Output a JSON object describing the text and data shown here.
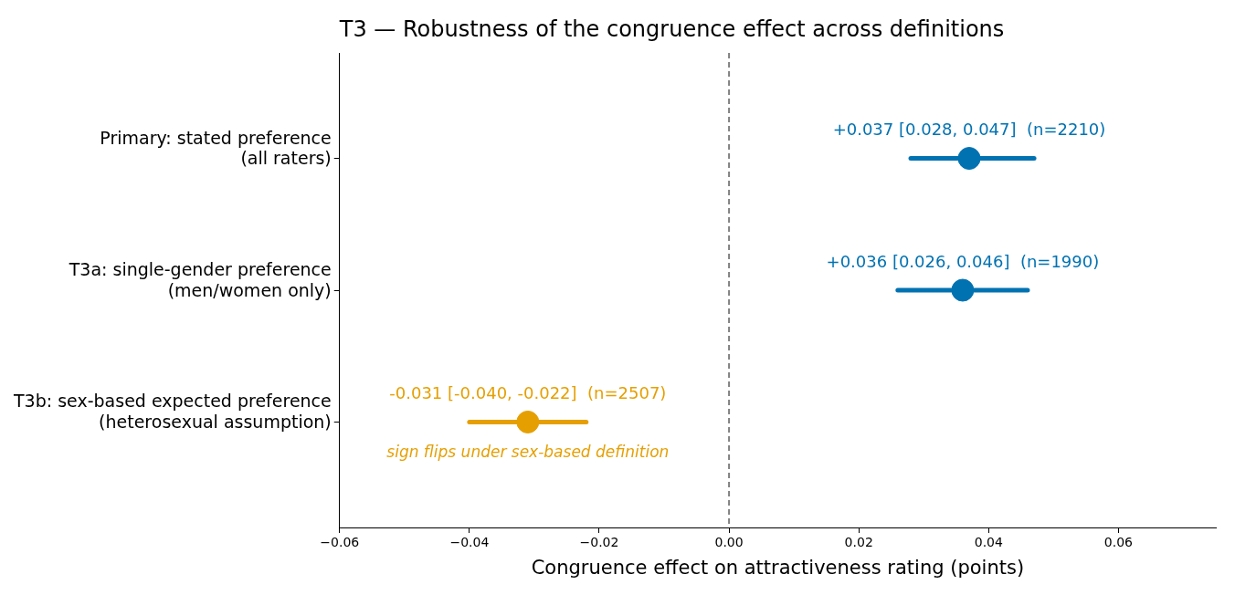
{
  "chart_data": {
    "type": "scatter",
    "orientation": "horizontal",
    "title": "T3 — Robustness of the congruence effect across definitions",
    "xlabel": "Congruence effect on attractiveness rating (points)",
    "categories": [
      "Primary: stated preference\n(all raters)",
      "T3a: single-gender preference\n(men/women only)",
      "T3b: sex-based expected preference\n(heterosexual assumption)"
    ],
    "values": [
      0.037,
      0.036,
      -0.031
    ],
    "errors": [
      [
        0.028,
        0.047
      ],
      [
        0.026,
        0.046
      ],
      [
        -0.04,
        -0.022
      ]
    ],
    "colors": [
      "#0072b2",
      "#0072b2",
      "#e69f00"
    ],
    "value_labels": [
      "+0.037 [0.028, 0.047]  (n=2210)",
      "+0.036 [0.026, 0.046]  (n=1990)",
      "-0.031 [-0.040, -0.022]  (n=2507)"
    ],
    "annotations": [
      {
        "text": "sign flips under sex-based definition",
        "x": -0.031,
        "y": "T3b: sex-based expected preference\n(heterosexual assumption)"
      }
    ],
    "ref_lines": [
      {
        "axis": "x",
        "value": 0,
        "color": "#808080",
        "line_style": "dashed"
      }
    ],
    "xlim": [
      -0.06,
      0.075
    ],
    "xticks": [
      {
        "value": -0.06,
        "label": "−0.06"
      },
      {
        "value": -0.04,
        "label": "−0.04"
      },
      {
        "value": -0.02,
        "label": "−0.02"
      },
      {
        "value": 0,
        "label": "0.00"
      },
      {
        "value": 0.02,
        "label": "0.02"
      },
      {
        "value": 0.04,
        "label": "0.04"
      },
      {
        "value": 0.06,
        "label": "0.06"
      }
    ],
    "marker": "circle",
    "grid": false,
    "legend": false
  }
}
